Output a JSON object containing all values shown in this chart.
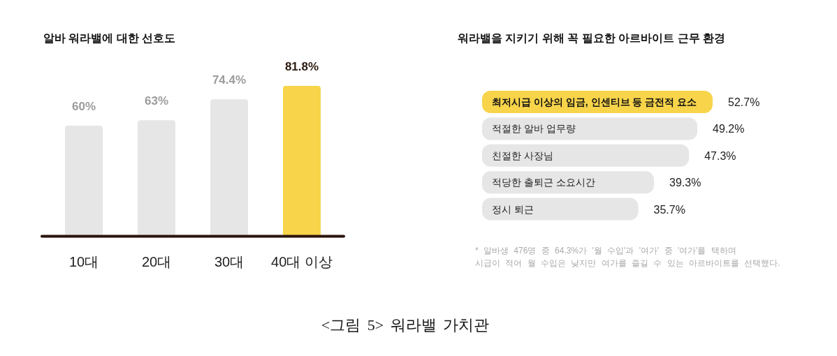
{
  "chart_data": [
    {
      "type": "bar",
      "title": "알바 워라밸에 대한 선호도",
      "categories": [
        "10대",
        "20대",
        "30대",
        "40대 이상"
      ],
      "values": [
        60,
        63,
        74.4,
        81.8
      ],
      "colors": [
        "#e6e6e6",
        "#e6e6e6",
        "#e6e6e6",
        "#f7d44a"
      ],
      "value_labels": [
        "60%",
        "63%",
        "74.4%",
        "81.8%"
      ],
      "annotations": [
        "<그림 5> 워라밸 가치관"
      ]
    },
    {
      "type": "bar",
      "orientation": "horizontal",
      "title": "워라밸을 지키기 위해 꼭 필요한 아르바이트 근무 환경",
      "categories": [
        "최저시급 이상의 임금, 인센티브 등 금전적 요소",
        "적절한 알바 업무량",
        "친절한 사장님",
        "적당한 출퇴근 소요시간",
        "정시 퇴근"
      ],
      "values": [
        52.7,
        49.2,
        47.3,
        39.3,
        35.7
      ],
      "colors": [
        "#f7d44a",
        "#e6e6e6",
        "#e6e6e6",
        "#e6e6e6",
        "#e6e6e6"
      ],
      "value_labels": [
        "52.7%",
        "49.2%",
        "47.3%",
        "39.3%",
        "35.7%"
      ],
      "annotations": [
        "* 알바생 476명 중 64.3%가 '월 수입'과 '여가' 중 '여가'를 택하며\n시급이 적어 월 수입은 낮지만 여가를 즐길 수 있는 아르바이트를 선택했다."
      ]
    }
  ]
}
